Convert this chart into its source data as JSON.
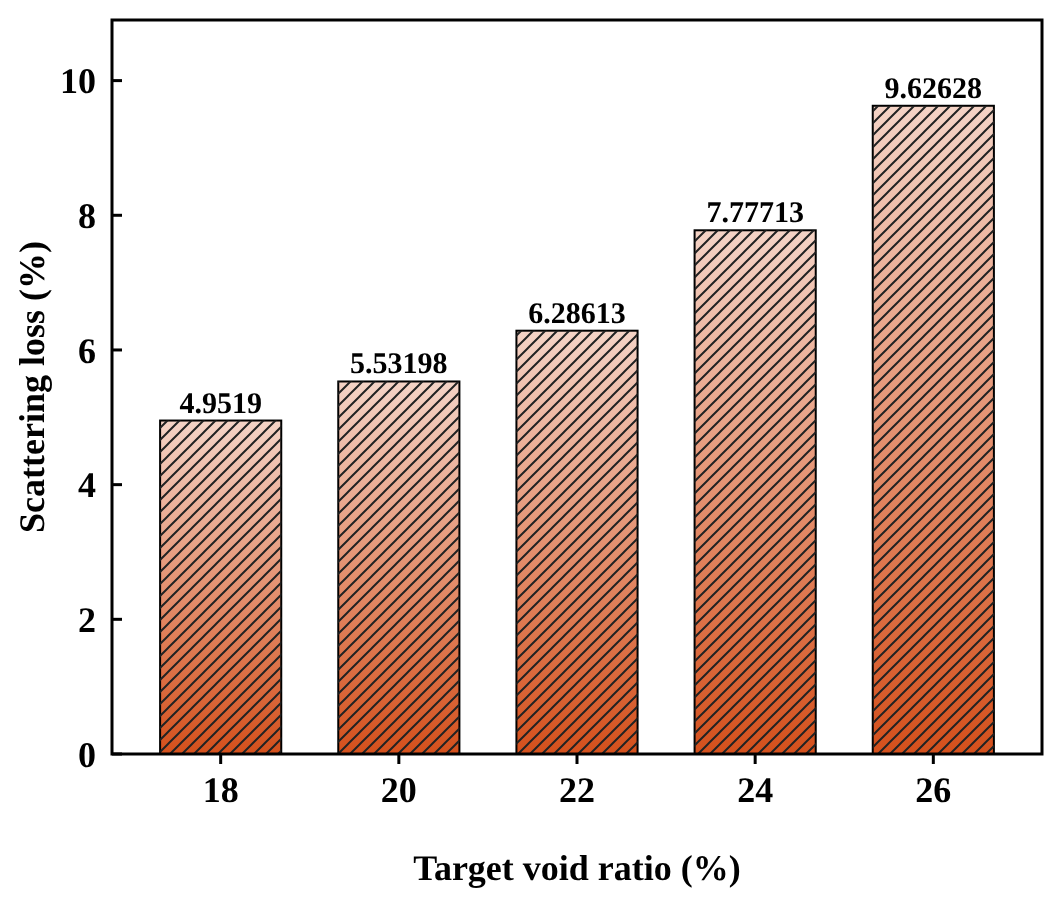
{
  "chart_data": {
    "type": "bar",
    "xlabel": "Target void ratio (%)",
    "ylabel": "Scattering loss (%)",
    "categories": [
      "18",
      "20",
      "22",
      "24",
      "26"
    ],
    "values": [
      4.9519,
      5.53198,
      6.28613,
      7.77713,
      9.62628
    ],
    "color": "#d4501c",
    "ylim": [
      0,
      10.9
    ],
    "yticks": [
      0,
      2,
      4,
      6,
      8,
      10
    ],
    "grid": false,
    "data_labels": true
  }
}
